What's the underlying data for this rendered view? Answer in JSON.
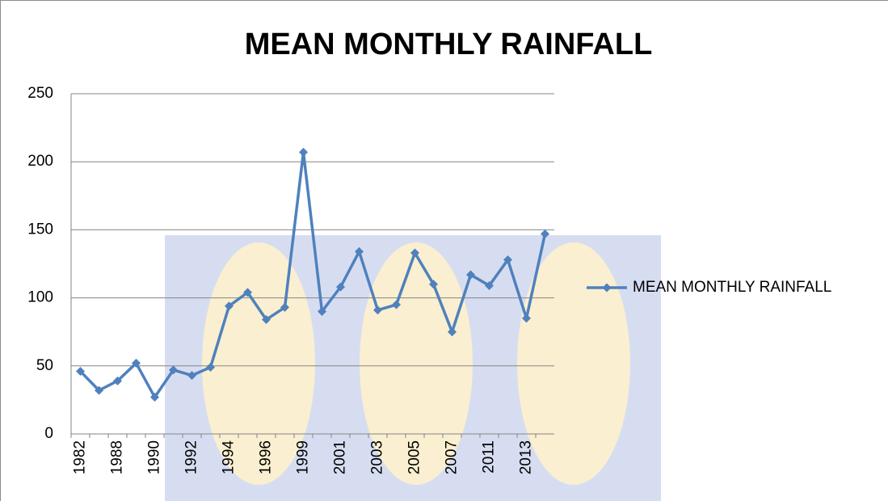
{
  "chart_data": {
    "type": "line",
    "title": "MEAN MONTHLY RAINFALL",
    "categories": [
      "1982",
      null,
      "1988",
      null,
      "1990",
      null,
      "1992",
      null,
      "1994",
      null,
      "1996",
      null,
      "1999",
      null,
      "2001",
      null,
      "2003",
      null,
      "2005",
      null,
      "2007",
      null,
      "2011",
      null,
      "2013",
      null
    ],
    "series": [
      {
        "name": "MEAN MONTHLY RAINFALL",
        "color": "#4f81bd",
        "values": [
          46,
          32,
          39,
          52,
          27,
          47,
          43,
          49,
          94,
          104,
          84,
          93,
          207,
          90,
          108,
          134,
          91,
          95,
          133,
          110,
          75,
          117,
          109,
          128,
          85,
          147
        ]
      }
    ],
    "ylim": [
      0,
      250
    ],
    "yticks": [
      0,
      50,
      100,
      150,
      200,
      250
    ],
    "grid": true,
    "legend": "right"
  }
}
